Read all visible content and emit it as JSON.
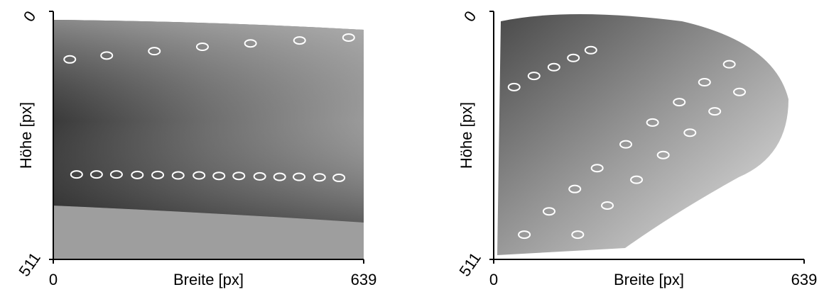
{
  "chart_data": [
    {
      "type": "image",
      "xlabel": "Breite [px]",
      "ylabel": "Höhe [px]",
      "xlim": [
        0,
        639
      ],
      "ylim": [
        511,
        0
      ],
      "xticks": [
        0,
        639
      ],
      "yticks": [
        0,
        511
      ],
      "x": [
        34,
        110,
        208,
        307,
        406,
        507,
        608,
        48,
        89,
        130,
        173,
        215,
        257,
        300,
        341,
        382,
        425,
        466,
        506,
        548,
        588
      ],
      "values": [
        99,
        91,
        82,
        73,
        66,
        60,
        54,
        336,
        336,
        336,
        337,
        337,
        338,
        338,
        339,
        339,
        340,
        341,
        341,
        342,
        343
      ],
      "color": "#ffffff"
    },
    {
      "type": "image",
      "xlabel": "Breite [px]",
      "ylabel": "Höhe [px]",
      "xlim": [
        0,
        639
      ],
      "ylim": [
        511,
        0
      ],
      "xticks": [
        0,
        639
      ],
      "yticks": [
        0,
        511
      ],
      "x": [
        42,
        83,
        124,
        164,
        200,
        485,
        434,
        382,
        327,
        272,
        213,
        167,
        114,
        63,
        506,
        455,
        404,
        349,
        294,
        234,
        173
      ],
      "values": [
        156,
        133,
        115,
        96,
        80,
        109,
        146,
        187,
        229,
        274,
        323,
        366,
        412,
        460,
        166,
        206,
        250,
        296,
        347,
        400,
        460
      ],
      "color": "#ffffff"
    }
  ]
}
